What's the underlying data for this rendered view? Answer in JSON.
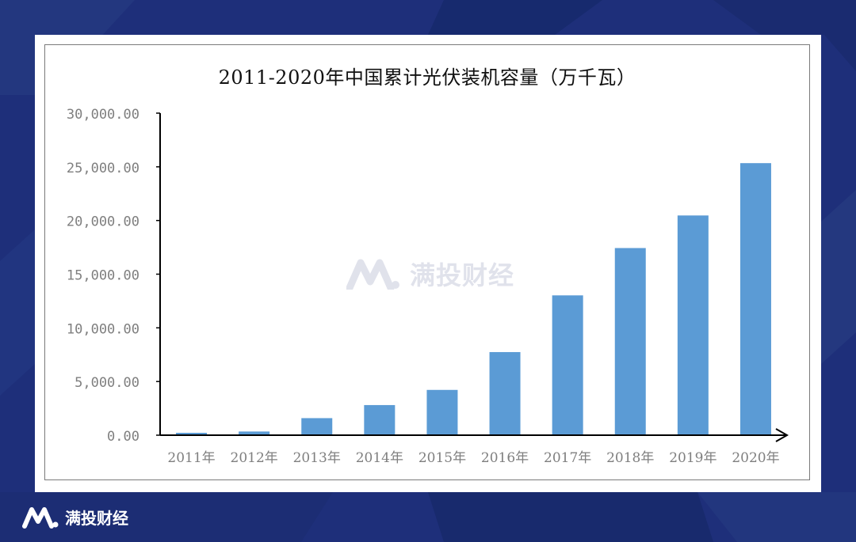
{
  "brand": {
    "name": "满投财经",
    "logo_icon": "m-letter-logo-icon"
  },
  "watermark": {
    "text": "满投财经"
  },
  "colors": {
    "page_bg": "#1e2f7a",
    "bar": "#5b9bd5",
    "axis": "#000000",
    "tick_label": "#7f7f7f"
  },
  "chart_data": {
    "type": "bar",
    "title": "2011-2020年中国累计光伏装机容量（万千瓦）",
    "categories": [
      "2011年",
      "2012年",
      "2013年",
      "2014年",
      "2015年",
      "2016年",
      "2017年",
      "2018年",
      "2019年",
      "2020年"
    ],
    "values": [
      222,
      341,
      1589,
      2805,
      4218,
      7742,
      13025,
      17433,
      20468,
      25343
    ],
    "xlabel": "",
    "ylabel": "",
    "ylim": [
      0,
      30000
    ],
    "yticks": [
      0,
      5000,
      10000,
      15000,
      20000,
      25000,
      30000
    ],
    "ytick_labels": [
      "0.00",
      "5,000.00",
      "10,000.00",
      "15,000.00",
      "20,000.00",
      "25,000.00",
      "30,000.00"
    ],
    "grid": false,
    "legend": "none"
  }
}
